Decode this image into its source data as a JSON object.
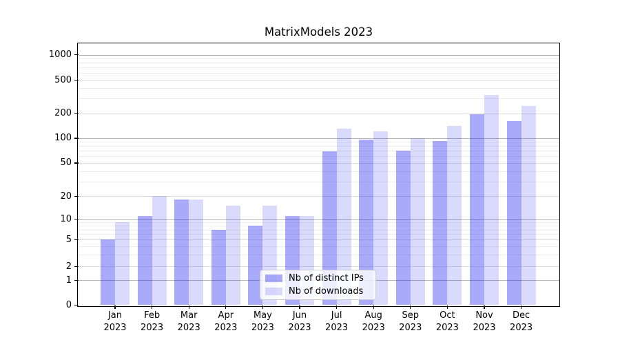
{
  "title": "MatrixModels 2023",
  "legend": {
    "items": [
      {
        "label": "Nb of distinct IPs",
        "color": "rgba(20,20,240,0.36)"
      },
      {
        "label": "Nb of downloads",
        "color": "rgba(20,20,240,0.155)"
      }
    ]
  },
  "chart_data": {
    "type": "bar",
    "title": "MatrixModels 2023",
    "categories": [
      "Jan",
      "Feb",
      "Mar",
      "Apr",
      "May",
      "Jun",
      "Jul",
      "Aug",
      "Sep",
      "Oct",
      "Nov",
      "Dec"
    ],
    "category_year": "2023",
    "series": [
      {
        "name": "Nb of distinct IPs",
        "color": "rgba(20,20,240,0.36)",
        "values": [
          5,
          11,
          18,
          7,
          8,
          11,
          69,
          96,
          71,
          92,
          195,
          160
        ]
      },
      {
        "name": "Nb of downloads",
        "color": "rgba(20,20,240,0.155)",
        "values": [
          9,
          20,
          18,
          15,
          15,
          11,
          130,
          120,
          100,
          140,
          330,
          245
        ]
      }
    ],
    "yscale": "symlog",
    "yticks": [
      0,
      1,
      2,
      5,
      10,
      20,
      50,
      100,
      200,
      500,
      1000
    ],
    "ylim": [
      0,
      1400
    ],
    "grid": true,
    "legend_position": "lower-center"
  }
}
